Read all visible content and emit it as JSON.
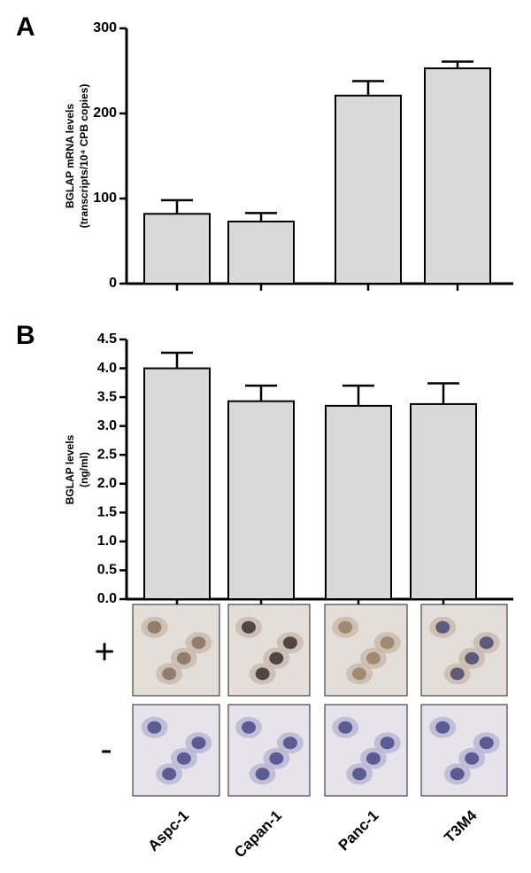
{
  "chart_data": [
    {
      "type": "bar",
      "panel_label": "A",
      "ylabel": [
        "BGLAP mRNA levels",
        "(transcripts/10⁴ CPB copies)"
      ],
      "values": [
        82,
        73,
        221,
        253
      ],
      "errors": [
        16,
        10,
        17,
        8
      ],
      "color": "#d9d9d9",
      "ylim": [
        0,
        300
      ],
      "yticks": [
        0,
        100,
        200,
        300
      ]
    },
    {
      "type": "bar",
      "panel_label": "B",
      "ylabel": [
        "BGLAP levels",
        "(ng/ml)"
      ],
      "categories": [
        "Aspc-1",
        "Capan-1",
        "Panc-1",
        "T3M4"
      ],
      "values": [
        4.0,
        3.43,
        3.35,
        3.38
      ],
      "errors": [
        0.27,
        0.27,
        0.35,
        0.36
      ],
      "color": "#d9d9d9",
      "ylim": [
        0,
        4.5
      ],
      "yticks": [
        {
          "value": 0,
          "label": "0.0"
        },
        0.5,
        {
          "value": 1,
          "label": "1.0"
        },
        1.5,
        {
          "value": 2,
          "label": "2.0"
        },
        2.5,
        {
          "value": 3,
          "label": "3.0"
        },
        3.5,
        {
          "value": 4,
          "label": "4.0"
        },
        4.5
      ]
    }
  ],
  "image_rows": [
    "+",
    "-"
  ]
}
